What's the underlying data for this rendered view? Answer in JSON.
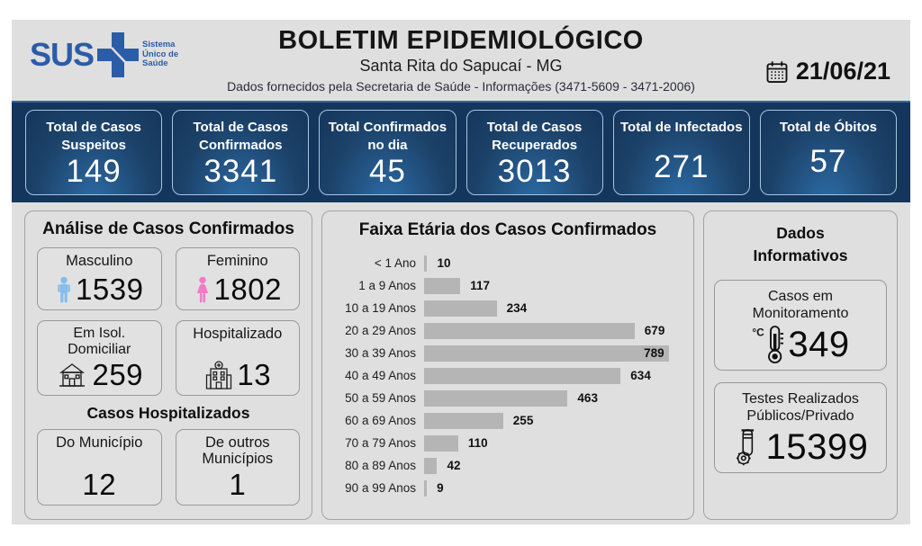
{
  "header": {
    "logo_text": "SUS",
    "logo_tagline": "Sistema Único de Saúde",
    "title": "BOLETIM EPIDEMIOLÓGICO",
    "subtitle": "Santa Rita do Sapucaí - MG",
    "info_line": "Dados fornecidos pela Secretaria de Saúde - Informações (3471-5609 - 3471-2006)",
    "date": "21/06/21"
  },
  "stats": [
    {
      "label": "Total de Casos Suspeitos",
      "value": "149"
    },
    {
      "label": "Total de Casos Confirmados",
      "value": "3341"
    },
    {
      "label": "Total Confirmados no dia",
      "value": "45"
    },
    {
      "label": "Total de Casos Recuperados",
      "value": "3013"
    },
    {
      "label": "Total de Infectados",
      "value": "271"
    },
    {
      "label": "Total de Óbitos",
      "value": "57"
    }
  ],
  "analysis": {
    "title": "Análise de Casos Confirmados",
    "cards": [
      {
        "label": "Masculino",
        "value": "1539",
        "icon": "male-icon"
      },
      {
        "label": "Feminino",
        "value": "1802",
        "icon": "female-icon"
      },
      {
        "label": "Em Isol. Domiciliar",
        "value": "259",
        "icon": "house-icon"
      },
      {
        "label": "Hospitalizado",
        "value": "13",
        "icon": "hospital-icon"
      }
    ],
    "hospitalized": {
      "title": "Casos Hospitalizados",
      "cards": [
        {
          "label": "Do Município",
          "value": "12"
        },
        {
          "label": "De outros Municípios",
          "value": "1"
        }
      ]
    }
  },
  "chart_data": {
    "type": "bar",
    "orientation": "horizontal",
    "title": "Faixa Etária dos Casos Confirmados",
    "categories": [
      "< 1 Ano",
      "1 a 9 Anos",
      "10 a 19 Anos",
      "20 a 29 Anos",
      "30 a 39 Anos",
      "40 a 49 Anos",
      "50 a 59 Anos",
      "60 a 69 Anos",
      "70 a 79 Anos",
      "80 a 89 Anos",
      "90 a 99 Anos"
    ],
    "values": [
      10,
      117,
      234,
      679,
      789,
      634,
      463,
      255,
      110,
      42,
      9
    ],
    "max_value": 789,
    "value_labels": true,
    "grid": false,
    "bar_color": "#b5b5b5",
    "xlabel": "",
    "ylabel": ""
  },
  "informative": {
    "title": "Dados Informativos",
    "cards": [
      {
        "label": "Casos em Monitoramento",
        "value": "349",
        "icon": "thermometer-icon"
      },
      {
        "label": "Testes Realizados Públicos/Privado",
        "value": "15399",
        "icon": "test-tube-icon"
      }
    ]
  },
  "colors": {
    "background": "#dfdfdf",
    "navy_bar": "#15365c",
    "card_gradient_light": "#2d6da8",
    "card_border": "#a6c6dd",
    "sus_blue": "#2b5ca8",
    "male_icon": "#85bdec",
    "female_icon": "#f07cc8",
    "bar_gray": "#b5b5b5"
  }
}
